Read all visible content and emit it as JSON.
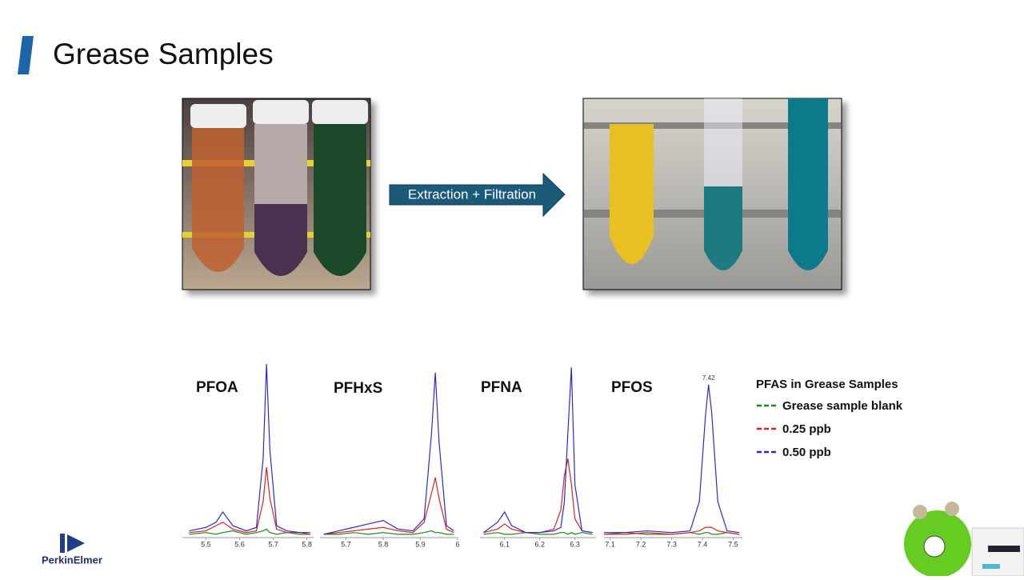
{
  "slide": {
    "title": "Grease Samples",
    "arrow_label": "Extraction + Filtration",
    "logo": "PerkinElmer"
  },
  "legend": {
    "title": "PFAS in Grease Samples",
    "entries": [
      {
        "name": "Grease sample blank",
        "color": "#1a8a1a"
      },
      {
        "name": "0.25 ppb",
        "color": "#e02020"
      },
      {
        "name": "0.50 ppb",
        "color": "#2a2ad0"
      }
    ]
  },
  "chart_data": [
    {
      "type": "line",
      "title": "PFOA",
      "xlim": [
        5.43,
        5.82
      ],
      "ylim": [
        0,
        100
      ],
      "xticks": [
        5.5,
        5.6,
        5.7,
        5.8
      ],
      "x": [
        5.45,
        5.5,
        5.53,
        5.55,
        5.58,
        5.62,
        5.65,
        5.67,
        5.68,
        5.69,
        5.71,
        5.74,
        5.78,
        5.81
      ],
      "series": [
        {
          "color": "#1a8a1a",
          "values": [
            1,
            2,
            1,
            2,
            3,
            1,
            2,
            3,
            4,
            2,
            1,
            2,
            1,
            1
          ]
        },
        {
          "color": "#e02020",
          "values": [
            2,
            3,
            6,
            8,
            4,
            2,
            3,
            20,
            40,
            22,
            4,
            2,
            2,
            1
          ]
        },
        {
          "color": "#2a2ad0",
          "values": [
            3,
            5,
            8,
            14,
            6,
            3,
            5,
            45,
            100,
            50,
            6,
            3,
            2,
            2
          ]
        }
      ]
    },
    {
      "type": "line",
      "title": "PFHxS",
      "xlim": [
        5.63,
        6.0
      ],
      "ylim": [
        0,
        100
      ],
      "xticks": [
        5.7,
        5.8,
        5.9,
        6
      ],
      "x": [
        5.64,
        5.68,
        5.72,
        5.76,
        5.8,
        5.84,
        5.88,
        5.91,
        5.93,
        5.94,
        5.95,
        5.97,
        5.99
      ],
      "series": [
        {
          "color": "#1a8a1a",
          "values": [
            1,
            1,
            2,
            1,
            2,
            1,
            1,
            2,
            3,
            2,
            2,
            1,
            1
          ]
        },
        {
          "color": "#e02020",
          "values": [
            1,
            2,
            3,
            4,
            5,
            3,
            2,
            8,
            25,
            34,
            22,
            4,
            2
          ]
        },
        {
          "color": "#2a2ad0",
          "values": [
            1,
            3,
            5,
            7,
            9,
            4,
            3,
            10,
            60,
            95,
            55,
            6,
            3
          ]
        }
      ]
    },
    {
      "type": "line",
      "title": "PFNA",
      "xlim": [
        6.03,
        6.36
      ],
      "ylim": [
        0,
        100
      ],
      "xticks": [
        6.1,
        6.2,
        6.3
      ],
      "x": [
        6.04,
        6.08,
        6.1,
        6.12,
        6.16,
        6.2,
        6.24,
        6.26,
        6.27,
        6.28,
        6.29,
        6.3,
        6.32,
        6.35
      ],
      "series": [
        {
          "color": "#1a8a1a",
          "values": [
            1,
            2,
            1,
            1,
            2,
            1,
            1,
            2,
            2,
            1,
            2,
            1,
            2,
            1
          ]
        },
        {
          "color": "#e02020",
          "values": [
            2,
            4,
            7,
            4,
            2,
            2,
            4,
            15,
            35,
            45,
            30,
            10,
            3,
            2
          ]
        },
        {
          "color": "#2a2ad0",
          "values": [
            2,
            8,
            14,
            6,
            2,
            2,
            3,
            5,
            20,
            60,
            98,
            30,
            3,
            2
          ]
        }
      ]
    },
    {
      "type": "line",
      "title": "PFOS",
      "xlim": [
        7.08,
        7.53
      ],
      "ylim": [
        0,
        100
      ],
      "xticks": [
        7.1,
        7.2,
        7.3,
        7.4,
        7.5
      ],
      "annotations": [
        {
          "x": 7.42,
          "text": "7.42"
        }
      ],
      "x": [
        7.08,
        7.15,
        7.22,
        7.3,
        7.36,
        7.39,
        7.41,
        7.42,
        7.43,
        7.45,
        7.48,
        7.52
      ],
      "series": [
        {
          "color": "#1a8a1a",
          "values": [
            1,
            2,
            1,
            1,
            2,
            1,
            2,
            2,
            1,
            1,
            2,
            1
          ]
        },
        {
          "color": "#e02020",
          "values": [
            1,
            1,
            2,
            1,
            2,
            3,
            5,
            5,
            5,
            3,
            2,
            1
          ]
        },
        {
          "color": "#2a2ad0",
          "values": [
            2,
            2,
            3,
            2,
            3,
            20,
            70,
            88,
            72,
            20,
            3,
            2
          ]
        }
      ]
    }
  ]
}
